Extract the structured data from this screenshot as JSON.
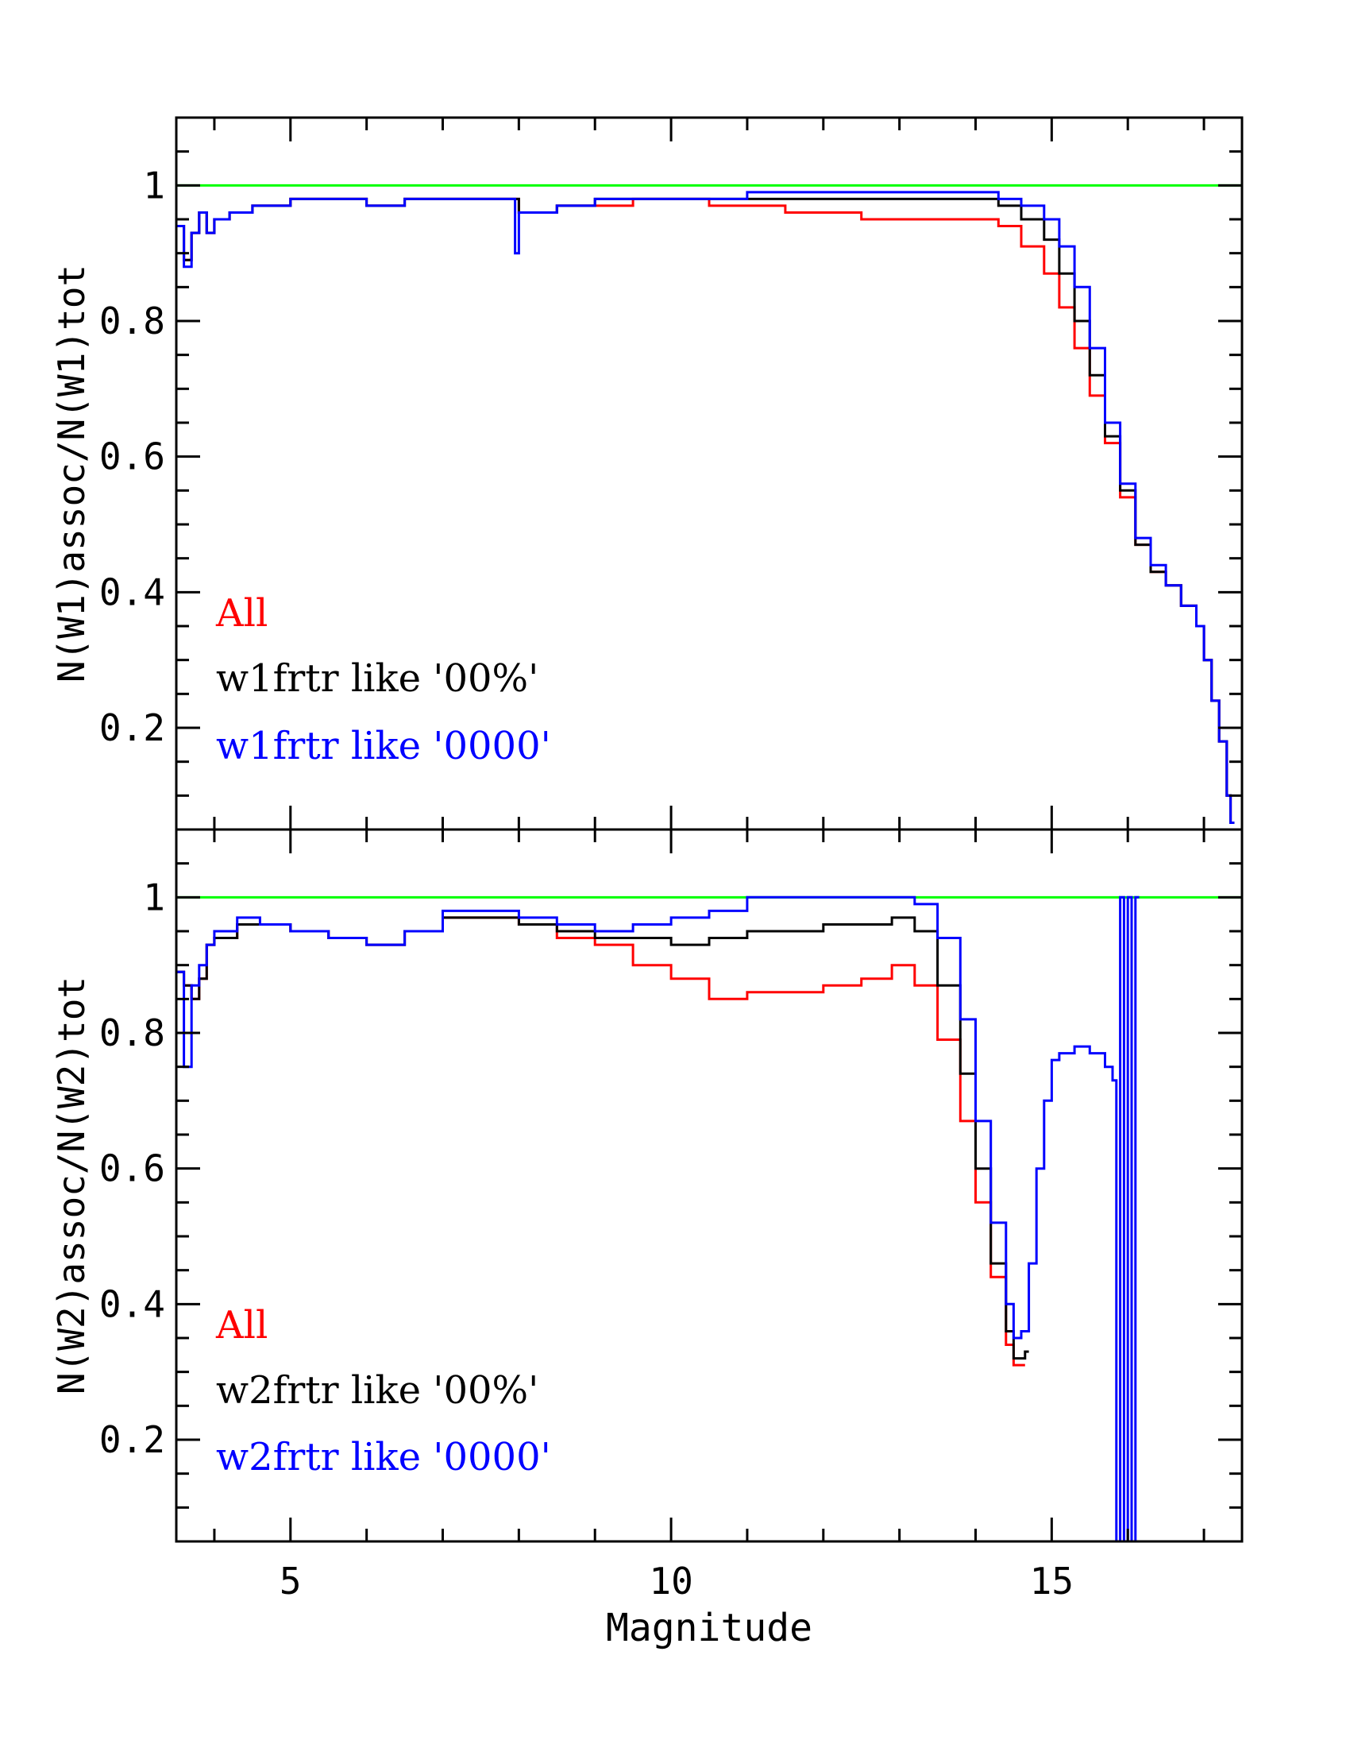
{
  "figure": {
    "xlabel": "Magnitude",
    "colors": {
      "all": "#ff0000",
      "frac00": "#000000",
      "frac0000": "#0000ff",
      "reference": "#00ff00",
      "axes": "#000000"
    }
  },
  "chart_data": [
    {
      "type": "line",
      "panel": "top",
      "ylabel": "N(W1)assoc/N(W1)tot",
      "xlabel": "Magnitude",
      "xlim": [
        3.5,
        17.5
      ],
      "ylim": [
        0.05,
        1.1
      ],
      "xticks": [
        5,
        10,
        15
      ],
      "xtick_labels": [
        "5",
        "10",
        "15"
      ],
      "yticks": [
        0.2,
        0.4,
        0.6,
        0.8,
        1
      ],
      "ytick_labels": [
        "0.2",
        "0.4",
        "0.6",
        "0.8",
        "1"
      ],
      "reference_line": 1.0,
      "legend_position": "bottom-left",
      "series": [
        {
          "name": "All",
          "color_key": "all",
          "x": [
            3.5,
            3.6,
            3.7,
            3.8,
            3.9,
            4.0,
            4.2,
            4.5,
            5.0,
            5.5,
            6.0,
            6.5,
            7.0,
            7.5,
            8.0,
            8.5,
            9.0,
            9.5,
            10.0,
            10.5,
            11.0,
            11.5,
            12.0,
            12.5,
            13.0,
            13.5,
            14.0,
            14.3,
            14.6,
            14.9,
            15.1,
            15.3,
            15.5,
            15.7,
            15.9,
            16.1,
            16.3,
            16.5,
            16.7,
            16.9,
            17.0,
            17.1,
            17.2,
            17.3,
            17.35
          ],
          "values": [
            0.94,
            0.89,
            0.93,
            0.96,
            0.93,
            0.95,
            0.96,
            0.97,
            0.98,
            0.98,
            0.97,
            0.98,
            0.98,
            0.98,
            0.96,
            0.97,
            0.97,
            0.98,
            0.98,
            0.97,
            0.97,
            0.96,
            0.96,
            0.95,
            0.95,
            0.95,
            0.95,
            0.94,
            0.91,
            0.87,
            0.82,
            0.76,
            0.69,
            0.62,
            0.54,
            0.47,
            0.43,
            0.41,
            0.38,
            0.35,
            0.3,
            0.24,
            0.18,
            0.1,
            0.06
          ]
        },
        {
          "name": "w1frtr like '00%'",
          "color_key": "frac00",
          "x": [
            3.5,
            3.6,
            3.7,
            3.8,
            3.9,
            4.0,
            4.2,
            4.5,
            5.0,
            5.5,
            6.0,
            6.5,
            7.0,
            7.5,
            8.0,
            8.5,
            9.0,
            9.5,
            10.0,
            10.5,
            11.0,
            11.5,
            12.0,
            12.5,
            13.0,
            13.5,
            14.0,
            14.3,
            14.6,
            14.9,
            15.1,
            15.3,
            15.5,
            15.7,
            15.9,
            16.1,
            16.3,
            16.5,
            16.7,
            16.9,
            17.0,
            17.1,
            17.2,
            17.3,
            17.35
          ],
          "values": [
            0.94,
            0.89,
            0.93,
            0.96,
            0.93,
            0.95,
            0.96,
            0.97,
            0.98,
            0.98,
            0.97,
            0.98,
            0.98,
            0.98,
            0.96,
            0.97,
            0.98,
            0.98,
            0.98,
            0.98,
            0.98,
            0.98,
            0.98,
            0.98,
            0.98,
            0.98,
            0.98,
            0.97,
            0.95,
            0.92,
            0.87,
            0.8,
            0.72,
            0.63,
            0.55,
            0.47,
            0.43,
            0.41,
            0.38,
            0.35,
            0.3,
            0.24,
            0.18,
            0.1,
            0.06
          ]
        },
        {
          "name": "w1frtr like '0000'",
          "color_key": "frac0000",
          "x": [
            3.5,
            3.6,
            3.7,
            3.8,
            3.9,
            4.0,
            4.2,
            4.5,
            5.0,
            5.5,
            6.0,
            6.5,
            7.0,
            7.5,
            7.95,
            8.0,
            8.5,
            9.0,
            9.5,
            10.0,
            10.5,
            11.0,
            11.5,
            12.0,
            12.5,
            13.0,
            13.5,
            14.0,
            14.3,
            14.6,
            14.9,
            15.1,
            15.3,
            15.5,
            15.7,
            15.9,
            16.1,
            16.3,
            16.5,
            16.7,
            16.9,
            17.0,
            17.1,
            17.2,
            17.3,
            17.35
          ],
          "values": [
            0.94,
            0.88,
            0.93,
            0.96,
            0.93,
            0.95,
            0.96,
            0.97,
            0.98,
            0.98,
            0.97,
            0.98,
            0.98,
            0.98,
            0.9,
            0.96,
            0.97,
            0.98,
            0.98,
            0.98,
            0.98,
            0.99,
            0.99,
            0.99,
            0.99,
            0.99,
            0.99,
            0.99,
            0.98,
            0.97,
            0.95,
            0.91,
            0.85,
            0.76,
            0.65,
            0.56,
            0.48,
            0.44,
            0.41,
            0.38,
            0.35,
            0.3,
            0.24,
            0.18,
            0.1,
            0.06
          ]
        }
      ]
    },
    {
      "type": "line",
      "panel": "bottom",
      "ylabel": "N(W2)assoc/N(W2)tot",
      "xlabel": "Magnitude",
      "xlim": [
        3.5,
        17.5
      ],
      "ylim": [
        0.05,
        1.1
      ],
      "xticks": [
        5,
        10,
        15
      ],
      "xtick_labels": [
        "5",
        "10",
        "15"
      ],
      "yticks": [
        0.2,
        0.4,
        0.6,
        0.8,
        1
      ],
      "ytick_labels": [
        "0.2",
        "0.4",
        "0.6",
        "0.8",
        "1"
      ],
      "reference_line": 1.0,
      "legend_position": "bottom-left",
      "series": [
        {
          "name": "All",
          "color_key": "all",
          "x": [
            3.5,
            3.6,
            3.7,
            3.8,
            3.9,
            4.0,
            4.3,
            4.6,
            5.0,
            5.5,
            6.0,
            6.5,
            7.0,
            7.5,
            8.0,
            8.5,
            9.0,
            9.5,
            10.0,
            10.5,
            11.0,
            11.5,
            12.0,
            12.5,
            12.9,
            13.2,
            13.5,
            13.8,
            14.0,
            14.2,
            14.4,
            14.5,
            14.6
          ],
          "values": [
            0.89,
            0.87,
            0.85,
            0.88,
            0.93,
            0.94,
            0.96,
            0.96,
            0.95,
            0.94,
            0.93,
            0.95,
            0.97,
            0.97,
            0.96,
            0.94,
            0.93,
            0.9,
            0.88,
            0.85,
            0.86,
            0.86,
            0.87,
            0.88,
            0.9,
            0.87,
            0.79,
            0.67,
            0.55,
            0.44,
            0.34,
            0.31,
            0.31
          ]
        },
        {
          "name": "w2frtr like '00%'",
          "color_key": "frac00",
          "x": [
            3.5,
            3.6,
            3.7,
            3.8,
            3.9,
            4.0,
            4.3,
            4.6,
            5.0,
            5.5,
            6.0,
            6.5,
            7.0,
            7.5,
            8.0,
            8.5,
            9.0,
            9.5,
            10.0,
            10.5,
            11.0,
            11.5,
            12.0,
            12.5,
            12.9,
            13.2,
            13.5,
            13.8,
            14.0,
            14.2,
            14.4,
            14.5,
            14.6,
            14.65
          ],
          "values": [
            0.89,
            0.87,
            0.85,
            0.88,
            0.93,
            0.94,
            0.96,
            0.96,
            0.95,
            0.94,
            0.93,
            0.95,
            0.97,
            0.97,
            0.96,
            0.95,
            0.94,
            0.94,
            0.93,
            0.94,
            0.95,
            0.95,
            0.96,
            0.96,
            0.97,
            0.95,
            0.87,
            0.74,
            0.6,
            0.46,
            0.36,
            0.32,
            0.32,
            0.33
          ]
        },
        {
          "name": "w2frtr like '0000'",
          "color_key": "frac0000",
          "x": [
            3.5,
            3.6,
            3.7,
            3.8,
            3.9,
            4.0,
            4.3,
            4.6,
            5.0,
            5.5,
            6.0,
            6.5,
            7.0,
            7.5,
            8.0,
            8.5,
            9.0,
            9.5,
            10.0,
            10.5,
            11.0,
            11.5,
            12.0,
            12.5,
            12.9,
            13.2,
            13.5,
            13.8,
            14.0,
            14.2,
            14.4,
            14.5,
            14.6,
            14.7,
            14.8,
            14.9,
            15.0,
            15.1,
            15.3,
            15.5,
            15.7,
            15.8,
            15.85,
            15.9,
            15.95,
            16.0,
            16.05,
            16.1
          ],
          "values": [
            0.89,
            0.75,
            0.87,
            0.9,
            0.93,
            0.95,
            0.97,
            0.96,
            0.95,
            0.94,
            0.93,
            0.95,
            0.98,
            0.98,
            0.97,
            0.96,
            0.95,
            0.96,
            0.97,
            0.98,
            1.0,
            1.0,
            1.0,
            1.0,
            1.0,
            0.99,
            0.94,
            0.82,
            0.67,
            0.52,
            0.4,
            0.35,
            0.36,
            0.46,
            0.6,
            0.7,
            0.76,
            0.77,
            0.78,
            0.77,
            0.75,
            0.73,
            0.02,
            1.0,
            0.02,
            1.0,
            0.02,
            1.0
          ]
        }
      ]
    }
  ]
}
